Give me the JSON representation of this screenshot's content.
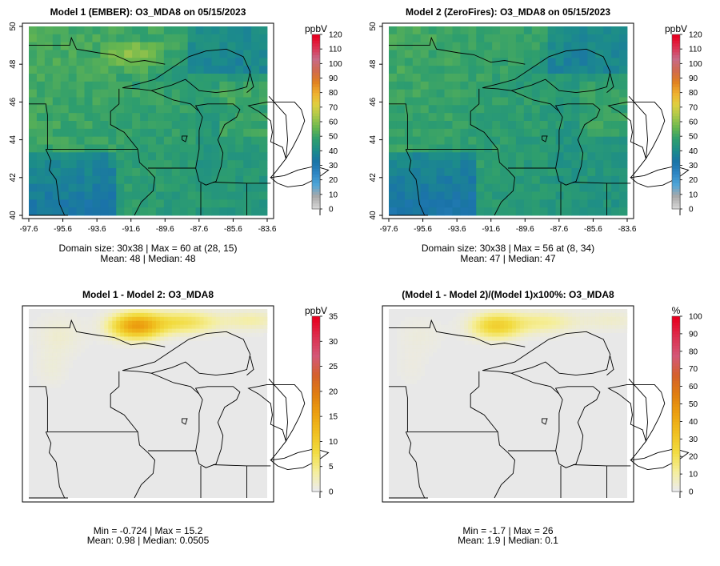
{
  "colors": {
    "model_scale": [
      "#d4d4d4",
      "#a9a9a9",
      "#4fa6d8",
      "#2f86c4",
      "#1a73a8",
      "#1c8c8a",
      "#2e9e6e",
      "#69b74e",
      "#a8c84a",
      "#e0d040",
      "#f0b030",
      "#e08020",
      "#d06a50",
      "#c86a88",
      "#dc3050",
      "#e80020"
    ],
    "diff_scale": [
      "#ececec",
      "#f5ee9a",
      "#f2dc40",
      "#f0c020",
      "#eca010",
      "#e07e10",
      "#d4602a",
      "#d45878",
      "#dc3050",
      "#e80020"
    ],
    "background": "#e8e8e8"
  },
  "chart_data": [
    {
      "type": "heatmap",
      "id": "panel-model1",
      "title": "Model 1 (EMBER): O3_MDA8 on 05/15/2023",
      "x_ticks": [
        "-97.6",
        "-95.6",
        "-93.6",
        "-91.6",
        "-89.6",
        "-87.6",
        "-85.6",
        "-83.6"
      ],
      "y_ticks": [
        "40",
        "42",
        "44",
        "46",
        "48",
        "50"
      ],
      "xlim": [
        -97.6,
        -83.6
      ],
      "ylim": [
        40,
        50
      ],
      "colorbar": {
        "unit": "ppbV",
        "min": 0,
        "max": 120,
        "ticks": [
          "0",
          "10",
          "20",
          "30",
          "40",
          "50",
          "60",
          "70",
          "80",
          "90",
          "100",
          "110",
          "120"
        ]
      },
      "stats": {
        "line1": "Domain size: 30x38 | Max = 60 at (28, 15)",
        "line2": "Mean: 48 |  Median: 48"
      },
      "mean": 48,
      "max": 60
    },
    {
      "type": "heatmap",
      "id": "panel-model2",
      "title": "Model 2 (ZeroFires): O3_MDA8 on 05/15/2023",
      "x_ticks": [
        "-97.6",
        "-95.6",
        "-93.6",
        "-91.6",
        "-89.6",
        "-87.6",
        "-85.6",
        "-83.6"
      ],
      "y_ticks": [
        "40",
        "42",
        "44",
        "46",
        "48",
        "50"
      ],
      "xlim": [
        -97.6,
        -83.6
      ],
      "ylim": [
        40,
        50
      ],
      "colorbar": {
        "unit": "ppbV",
        "min": 0,
        "max": 120,
        "ticks": [
          "0",
          "10",
          "20",
          "30",
          "40",
          "50",
          "60",
          "70",
          "80",
          "90",
          "100",
          "110",
          "120"
        ]
      },
      "stats": {
        "line1": "Domain size: 30x38 | Max = 56 at (8, 34)",
        "line2": "Mean: 47 |  Median: 47"
      },
      "mean": 47,
      "max": 56
    },
    {
      "type": "heatmap",
      "id": "panel-diff",
      "title": "Model 1 - Model 2: O3_MDA8",
      "colorbar": {
        "unit": "ppbV",
        "min": 0,
        "max": 35,
        "ticks": [
          "0",
          "5",
          "10",
          "15",
          "20",
          "25",
          "30",
          "35"
        ]
      },
      "stats": {
        "line1": "Min = -0.724 | Max = 15.2",
        "line2": "Mean: 0.98 |  Median: 0.0505"
      },
      "min": -0.724,
      "max": 15.2
    },
    {
      "type": "heatmap",
      "id": "panel-pct",
      "title": "(Model 1 - Model 2)/(Model 1)x100%: O3_MDA8",
      "colorbar": {
        "unit": "%",
        "min": 0,
        "max": 100,
        "ticks": [
          "0",
          "10",
          "20",
          "30",
          "40",
          "50",
          "60",
          "70",
          "80",
          "90",
          "100"
        ]
      },
      "stats": {
        "line1": "Min = -1.7 | Max = 26",
        "line2": "Mean: 1.9 |  Median: 0.1"
      },
      "min": -1.7,
      "max": 26
    }
  ]
}
